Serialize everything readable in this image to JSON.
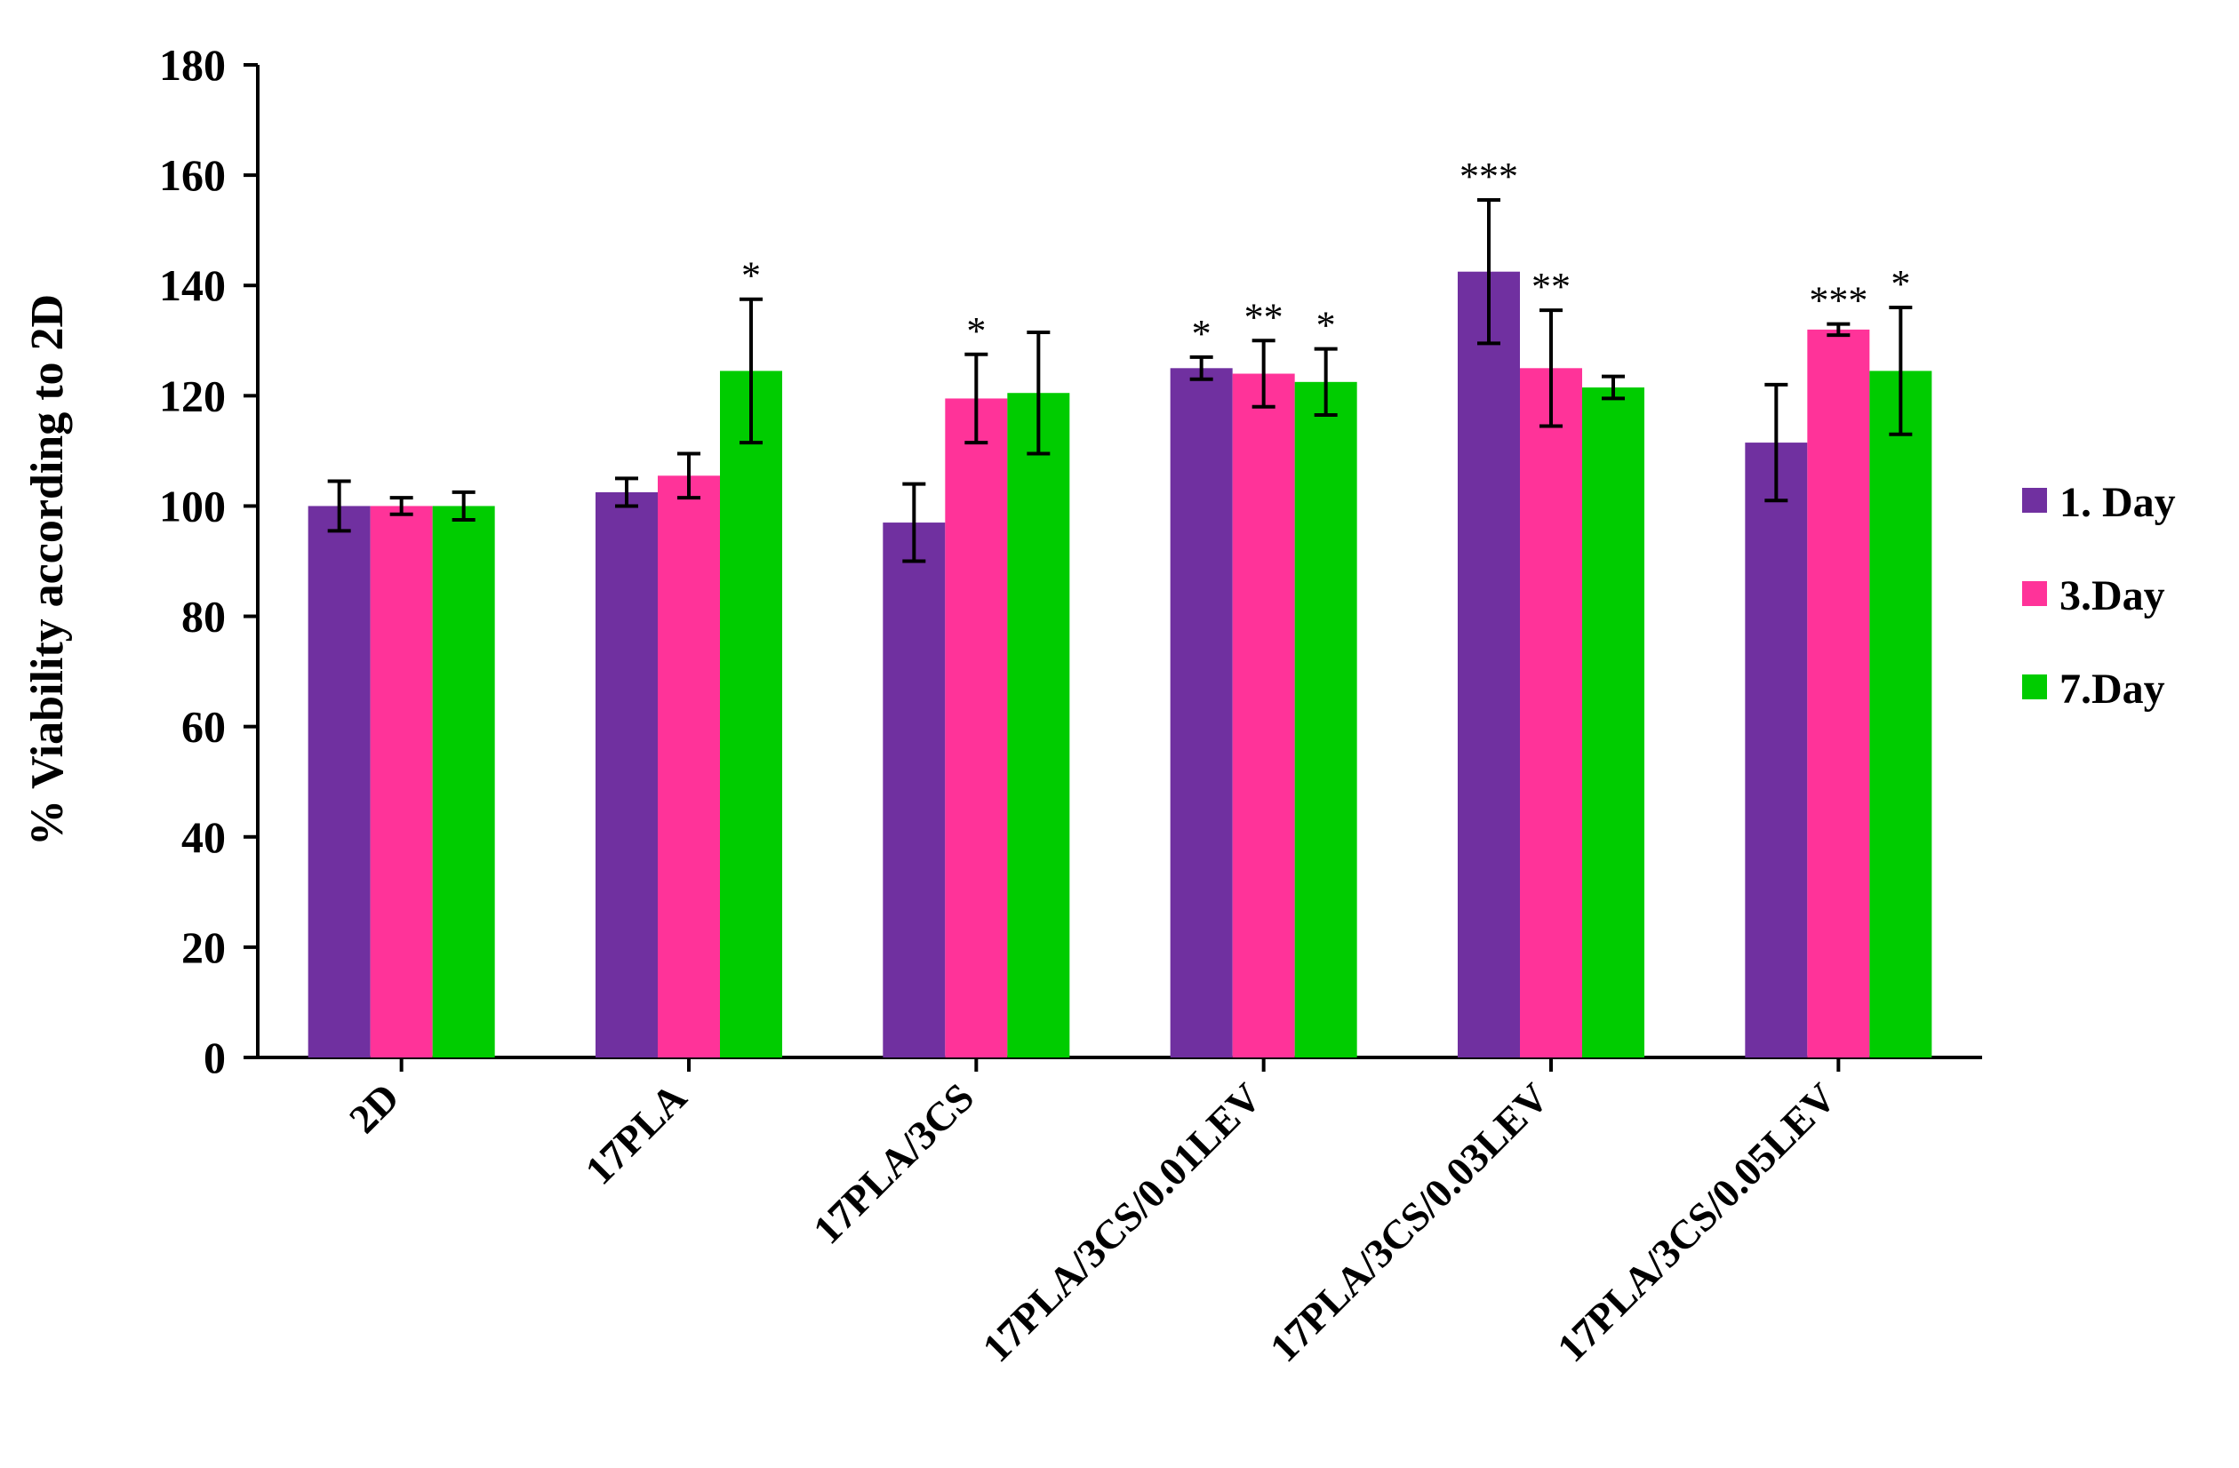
{
  "chart_data": {
    "type": "bar",
    "title": "",
    "xlabel": "",
    "ylabel": "% Viability according to 2D",
    "ylim": [
      0,
      180
    ],
    "yticks": [
      0,
      20,
      40,
      60,
      80,
      100,
      120,
      140,
      160,
      180
    ],
    "grid": false,
    "legend_position": "right",
    "categories": [
      "2D",
      "17PLA",
      "17PLA/3CS",
      "17PLA/3CS/0.01LEV",
      "17PLA/3CS/0.03LEV",
      "17PLA/3CS/0.05LEV"
    ],
    "series": [
      {
        "name": "1. Day",
        "color": "#7030A0",
        "values": [
          100,
          102.5,
          97,
          125,
          142.5,
          111.5
        ],
        "errors": [
          4.5,
          2.5,
          7,
          2,
          13,
          10.5
        ],
        "annotations": [
          "",
          "",
          "",
          "*",
          "***",
          ""
        ]
      },
      {
        "name": "3.Day",
        "color": "#FF3399",
        "values": [
          100,
          105.5,
          119.5,
          124,
          125,
          132
        ],
        "errors": [
          1.5,
          4,
          8,
          6,
          10.5,
          1
        ],
        "annotations": [
          "",
          "",
          "*",
          "**",
          "**",
          "***"
        ]
      },
      {
        "name": "7.Day",
        "color": "#00CC00",
        "values": [
          100,
          124.5,
          120.5,
          122.5,
          121.5,
          124.5
        ],
        "errors": [
          2.5,
          13,
          11,
          6,
          2,
          11.5
        ],
        "annotations": [
          "",
          "*",
          "",
          "*",
          "",
          "*"
        ]
      }
    ]
  }
}
